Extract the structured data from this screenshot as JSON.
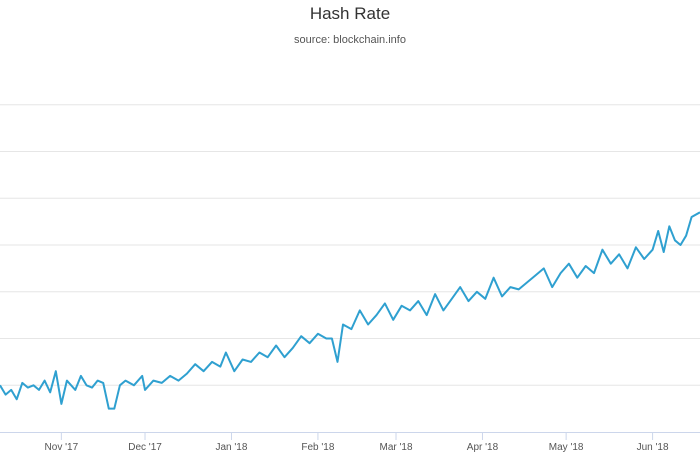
{
  "chart_data": {
    "type": "line",
    "title": "Hash Rate",
    "subtitle": "source: blockchain.info",
    "xlabel": "",
    "ylabel": "",
    "grid": true,
    "legend": "none",
    "line_color": "#2fa0d0",
    "x_tick_labels": [
      "Nov '17",
      "Dec '17",
      "Jan '18",
      "Feb '18",
      "Mar '18",
      "Apr '18",
      "May '18",
      "Jun '18"
    ],
    "x_tick_dates": [
      "2017-11-01",
      "2017-12-01",
      "2018-01-01",
      "2018-02-01",
      "2018-03-01",
      "2018-04-01",
      "2018-05-01",
      "2018-06-01"
    ],
    "x_range": [
      "2017-10-10",
      "2018-06-18"
    ],
    "y_range": [
      0,
      8
    ],
    "y_grid_values": [
      1,
      2,
      3,
      4,
      5,
      6,
      7
    ],
    "series": [
      {
        "points": [
          [
            "2017-10-10",
            1.0
          ],
          [
            "2017-10-12",
            0.8
          ],
          [
            "2017-10-14",
            0.9
          ],
          [
            "2017-10-16",
            0.7
          ],
          [
            "2017-10-18",
            1.05
          ],
          [
            "2017-10-20",
            0.95
          ],
          [
            "2017-10-22",
            1.0
          ],
          [
            "2017-10-24",
            0.9
          ],
          [
            "2017-10-26",
            1.1
          ],
          [
            "2017-10-28",
            0.85
          ],
          [
            "2017-10-30",
            1.3
          ],
          [
            "2017-11-01",
            0.6
          ],
          [
            "2017-11-03",
            1.1
          ],
          [
            "2017-11-06",
            0.9
          ],
          [
            "2017-11-08",
            1.2
          ],
          [
            "2017-11-10",
            1.0
          ],
          [
            "2017-11-12",
            0.95
          ],
          [
            "2017-11-14",
            1.1
          ],
          [
            "2017-11-16",
            1.05
          ],
          [
            "2017-11-18",
            0.5
          ],
          [
            "2017-11-20",
            0.5
          ],
          [
            "2017-11-22",
            1.0
          ],
          [
            "2017-11-24",
            1.1
          ],
          [
            "2017-11-27",
            1.0
          ],
          [
            "2017-11-30",
            1.2
          ],
          [
            "2017-12-01",
            0.9
          ],
          [
            "2017-12-04",
            1.1
          ],
          [
            "2017-12-07",
            1.05
          ],
          [
            "2017-12-10",
            1.2
          ],
          [
            "2017-12-13",
            1.1
          ],
          [
            "2017-12-16",
            1.25
          ],
          [
            "2017-12-19",
            1.45
          ],
          [
            "2017-12-22",
            1.3
          ],
          [
            "2017-12-25",
            1.5
          ],
          [
            "2017-12-28",
            1.4
          ],
          [
            "2017-12-30",
            1.7
          ],
          [
            "2018-01-02",
            1.3
          ],
          [
            "2018-01-05",
            1.55
          ],
          [
            "2018-01-08",
            1.5
          ],
          [
            "2018-01-11",
            1.7
          ],
          [
            "2018-01-14",
            1.6
          ],
          [
            "2018-01-17",
            1.85
          ],
          [
            "2018-01-20",
            1.6
          ],
          [
            "2018-01-23",
            1.8
          ],
          [
            "2018-01-26",
            2.05
          ],
          [
            "2018-01-29",
            1.9
          ],
          [
            "2018-02-01",
            2.1
          ],
          [
            "2018-02-04",
            2.0
          ],
          [
            "2018-02-06",
            2.0
          ],
          [
            "2018-02-08",
            1.5
          ],
          [
            "2018-02-10",
            2.3
          ],
          [
            "2018-02-13",
            2.2
          ],
          [
            "2018-02-16",
            2.6
          ],
          [
            "2018-02-19",
            2.3
          ],
          [
            "2018-02-22",
            2.5
          ],
          [
            "2018-02-25",
            2.75
          ],
          [
            "2018-02-28",
            2.4
          ],
          [
            "2018-03-03",
            2.7
          ],
          [
            "2018-03-06",
            2.6
          ],
          [
            "2018-03-09",
            2.8
          ],
          [
            "2018-03-12",
            2.5
          ],
          [
            "2018-03-15",
            2.95
          ],
          [
            "2018-03-18",
            2.6
          ],
          [
            "2018-03-21",
            2.85
          ],
          [
            "2018-03-24",
            3.1
          ],
          [
            "2018-03-27",
            2.8
          ],
          [
            "2018-03-30",
            3.0
          ],
          [
            "2018-04-02",
            2.85
          ],
          [
            "2018-04-05",
            3.3
          ],
          [
            "2018-04-08",
            2.9
          ],
          [
            "2018-04-11",
            3.1
          ],
          [
            "2018-04-14",
            3.05
          ],
          [
            "2018-04-17",
            3.2
          ],
          [
            "2018-04-20",
            3.35
          ],
          [
            "2018-04-23",
            3.5
          ],
          [
            "2018-04-26",
            3.1
          ],
          [
            "2018-04-29",
            3.4
          ],
          [
            "2018-05-02",
            3.6
          ],
          [
            "2018-05-05",
            3.3
          ],
          [
            "2018-05-08",
            3.55
          ],
          [
            "2018-05-11",
            3.4
          ],
          [
            "2018-05-14",
            3.9
          ],
          [
            "2018-05-17",
            3.6
          ],
          [
            "2018-05-20",
            3.8
          ],
          [
            "2018-05-23",
            3.5
          ],
          [
            "2018-05-26",
            3.95
          ],
          [
            "2018-05-29",
            3.7
          ],
          [
            "2018-06-01",
            3.9
          ],
          [
            "2018-06-03",
            4.3
          ],
          [
            "2018-06-05",
            3.85
          ],
          [
            "2018-06-07",
            4.4
          ],
          [
            "2018-06-09",
            4.1
          ],
          [
            "2018-06-11",
            4.0
          ],
          [
            "2018-06-13",
            4.2
          ],
          [
            "2018-06-15",
            4.6
          ],
          [
            "2018-06-18",
            4.7
          ]
        ]
      }
    ]
  }
}
